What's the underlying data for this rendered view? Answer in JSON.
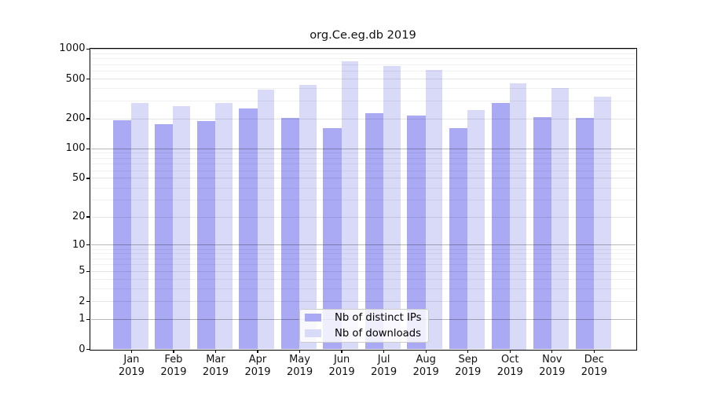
{
  "chart_data": {
    "type": "bar",
    "title": "org.Ce.eg.db 2019",
    "categories": [
      "Jan",
      "Feb",
      "Mar",
      "Apr",
      "May",
      "Jun",
      "Jul",
      "Aug",
      "Sep",
      "Oct",
      "Nov",
      "Dec"
    ],
    "category_year": "2019",
    "series": [
      {
        "name": "Nb of distinct IPs",
        "color": "#a9a9f4",
        "values": [
          192,
          178,
          189,
          255,
          205,
          162,
          226,
          214,
          162,
          288,
          206,
          204
        ]
      },
      {
        "name": "Nb of downloads",
        "color": "#d9d9f8",
        "values": [
          290,
          268,
          288,
          390,
          440,
          756,
          675,
          615,
          245,
          455,
          410,
          335
        ]
      }
    ],
    "y_scale": "log1p",
    "ylim": [
      0,
      1000
    ],
    "yticks": [
      0,
      1,
      2,
      5,
      10,
      20,
      50,
      100,
      200,
      500,
      1000
    ],
    "decade_ticks": [
      1,
      10,
      100,
      1000
    ],
    "minor_gridlines": [
      3,
      4,
      6,
      7,
      8,
      9,
      30,
      40,
      60,
      70,
      80,
      90,
      300,
      400,
      600,
      700,
      800,
      900
    ],
    "grid": true,
    "legend_position": "lower center",
    "colors": {
      "decade_gridline": "rgba(0,0,0,0.28)",
      "labeled_gridline": "rgba(0,0,0,0.10)",
      "minor_gridline": "rgba(0,0,0,0.06)"
    }
  }
}
